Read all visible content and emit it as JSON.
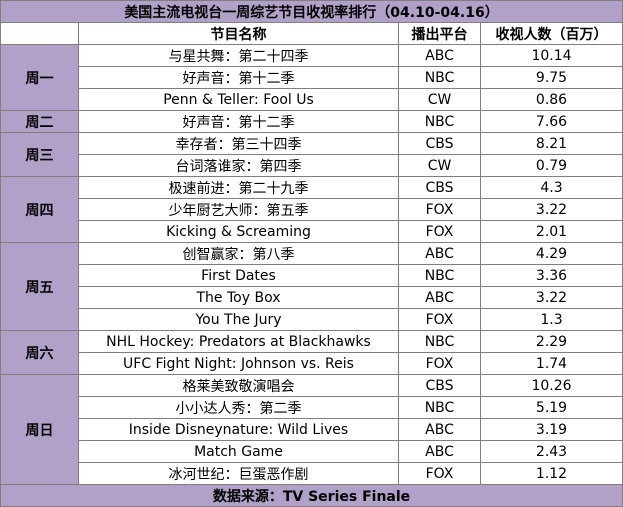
{
  "title": "美国主流电视台一周综艺节目收视率排行（04.10-04.16）",
  "headers": {
    "show": "节目名称",
    "network": "播出平台",
    "viewers": "收视人数（百万）"
  },
  "days": [
    {
      "day": "周一",
      "rows": [
        {
          "show": "与星共舞：第二十四季",
          "network": "ABC",
          "viewers": "10.14"
        },
        {
          "show": "好声音：第十二季",
          "network": "NBC",
          "viewers": "9.75"
        },
        {
          "show": "Penn & Teller: Fool Us",
          "network": "CW",
          "viewers": "0.86"
        }
      ]
    },
    {
      "day": "周二",
      "rows": [
        {
          "show": "好声音：第十二季",
          "network": "NBC",
          "viewers": "7.66"
        }
      ]
    },
    {
      "day": "周三",
      "rows": [
        {
          "show": "幸存者：第三十四季",
          "network": "CBS",
          "viewers": "8.21"
        },
        {
          "show": "台词落谁家：第四季",
          "network": "CW",
          "viewers": "0.79"
        }
      ]
    },
    {
      "day": "周四",
      "rows": [
        {
          "show": "极速前进：第二十九季",
          "network": "CBS",
          "viewers": "4.3"
        },
        {
          "show": "少年厨艺大师：第五季",
          "network": "FOX",
          "viewers": "3.22"
        },
        {
          "show": "Kicking & Screaming",
          "network": "FOX",
          "viewers": "2.01"
        }
      ]
    },
    {
      "day": "周五",
      "rows": [
        {
          "show": "创智赢家：第八季",
          "network": "ABC",
          "viewers": "4.29"
        },
        {
          "show": "First Dates",
          "network": "NBC",
          "viewers": "3.36"
        },
        {
          "show": "The Toy Box",
          "network": "ABC",
          "viewers": "3.22"
        },
        {
          "show": "You The Jury",
          "network": "FOX",
          "viewers": "1.3"
        }
      ]
    },
    {
      "day": "周六",
      "rows": [
        {
          "show": "NHL Hockey: Predators at Blackhawks",
          "network": "NBC",
          "viewers": "2.29"
        },
        {
          "show": "UFC Fight Night: Johnson vs. Reis",
          "network": "FOX",
          "viewers": "1.74"
        }
      ]
    },
    {
      "day": "周日",
      "rows": [
        {
          "show": "格莱美致敬演唱会",
          "network": "CBS",
          "viewers": "10.26"
        },
        {
          "show": "小小达人秀：第二季",
          "network": "NBC",
          "viewers": "5.19"
        },
        {
          "show": "Inside Disneynature: Wild Lives",
          "network": "ABC",
          "viewers": "3.19"
        },
        {
          "show": "Match Game",
          "network": "ABC",
          "viewers": "2.43"
        },
        {
          "show": "冰河世纪：巨蛋恶作剧",
          "network": "FOX",
          "viewers": "1.12"
        }
      ]
    }
  ],
  "source": "数据来源：TV Series Finale",
  "colors": {
    "accent": "#b1a0c7",
    "border": "#7f7f7f"
  }
}
